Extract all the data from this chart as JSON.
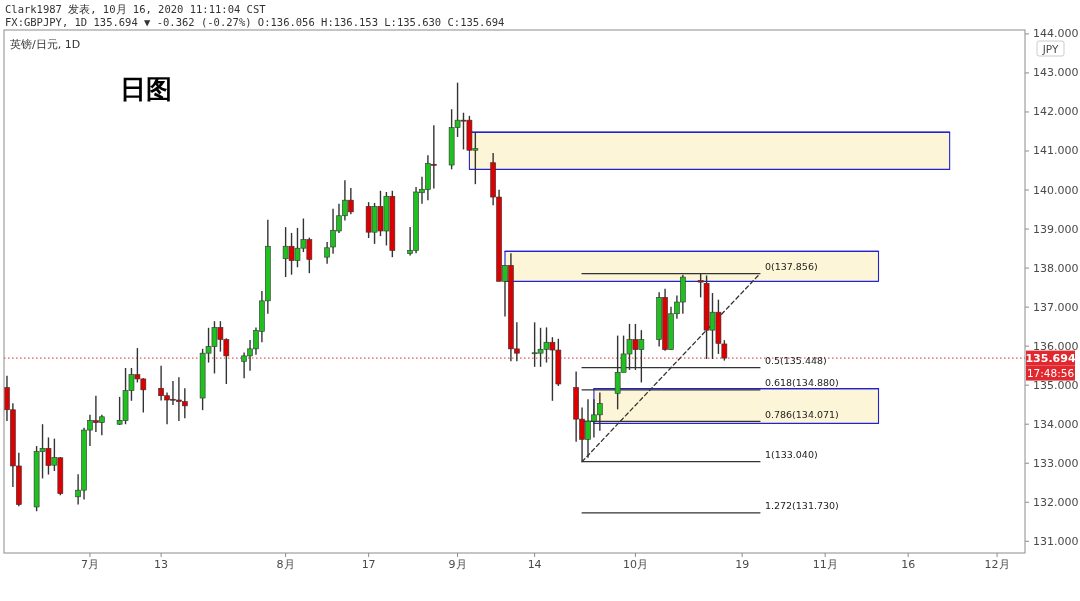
{
  "chart_data": {
    "type": "candlestick",
    "title": "日图",
    "subtitle": "英镑/日元, 1D",
    "ylabel": "JPY",
    "x": [
      "2020-06-17",
      "2020-06-18",
      "2020-06-19",
      "2020-06-22",
      "2020-06-23",
      "2020-06-24",
      "2020-06-25",
      "2020-06-26",
      "2020-06-29",
      "2020-06-30",
      "2020-07-01",
      "2020-07-02",
      "2020-07-03",
      "2020-07-06",
      "2020-07-07",
      "2020-07-08",
      "2020-07-09",
      "2020-07-10",
      "2020-07-13",
      "2020-07-14",
      "2020-07-15",
      "2020-07-16",
      "2020-07-17",
      "2020-07-20",
      "2020-07-21",
      "2020-07-22",
      "2020-07-23",
      "2020-07-24",
      "2020-07-27",
      "2020-07-28",
      "2020-07-29",
      "2020-07-30",
      "2020-07-31",
      "2020-08-03",
      "2020-08-04",
      "2020-08-05",
      "2020-08-06",
      "2020-08-07",
      "2020-08-10",
      "2020-08-11",
      "2020-08-12",
      "2020-08-13",
      "2020-08-14",
      "2020-08-17",
      "2020-08-18",
      "2020-08-19",
      "2020-08-20",
      "2020-08-21",
      "2020-08-24",
      "2020-08-25",
      "2020-08-26",
      "2020-08-27",
      "2020-08-28",
      "2020-08-31",
      "2020-09-01",
      "2020-09-02",
      "2020-09-03",
      "2020-09-04",
      "2020-09-07",
      "2020-09-08",
      "2020-09-09",
      "2020-09-10",
      "2020-09-11",
      "2020-09-14",
      "2020-09-15",
      "2020-09-16",
      "2020-09-17",
      "2020-09-18",
      "2020-09-21",
      "2020-09-22",
      "2020-09-23",
      "2020-09-24",
      "2020-09-25",
      "2020-09-28",
      "2020-09-29",
      "2020-09-30",
      "2020-10-01",
      "2020-10-02",
      "2020-10-05",
      "2020-10-06",
      "2020-10-07",
      "2020-10-08",
      "2020-10-09",
      "2020-10-12",
      "2020-10-13",
      "2020-10-14",
      "2020-10-15",
      "2020-10-16"
    ],
    "ohlc": [
      [
        134.94,
        135.24,
        134.08,
        134.37
      ],
      [
        134.37,
        134.54,
        132.39,
        132.93
      ],
      [
        132.93,
        133.27,
        131.9,
        131.94
      ],
      [
        131.88,
        133.44,
        131.77,
        133.3
      ],
      [
        133.3,
        134.0,
        132.61,
        133.38
      ],
      [
        133.38,
        133.66,
        132.71,
        132.94
      ],
      [
        132.95,
        133.63,
        132.8,
        133.15
      ],
      [
        133.14,
        133.16,
        132.18,
        132.22
      ],
      [
        132.14,
        132.72,
        131.94,
        132.31
      ],
      [
        132.31,
        133.91,
        132.07,
        133.85
      ],
      [
        133.85,
        134.24,
        133.44,
        134.1
      ],
      [
        134.09,
        134.73,
        133.8,
        134.04
      ],
      [
        134.04,
        134.24,
        133.72,
        134.19
      ],
      [
        134.0,
        134.7,
        133.98,
        134.1
      ],
      [
        134.09,
        135.44,
        134.0,
        134.86
      ],
      [
        134.86,
        135.44,
        134.6,
        135.27
      ],
      [
        135.27,
        135.95,
        135.07,
        135.16
      ],
      [
        135.16,
        135.18,
        134.3,
        134.88
      ],
      [
        134.92,
        135.5,
        134.61,
        134.73
      ],
      [
        134.73,
        134.81,
        134.0,
        134.62
      ],
      [
        134.64,
        135.11,
        134.49,
        134.62
      ],
      [
        134.62,
        135.2,
        134.08,
        134.58
      ],
      [
        134.58,
        134.92,
        134.15,
        134.47
      ],
      [
        134.67,
        135.93,
        134.36,
        135.82
      ],
      [
        135.82,
        136.47,
        135.58,
        135.99
      ],
      [
        135.99,
        136.64,
        135.3,
        136.48
      ],
      [
        136.48,
        136.64,
        135.86,
        136.17
      ],
      [
        136.17,
        136.2,
        135.03,
        135.75
      ],
      [
        135.61,
        135.84,
        135.18,
        135.75
      ],
      [
        135.75,
        136.16,
        135.37,
        135.93
      ],
      [
        135.93,
        136.48,
        135.78,
        136.4
      ],
      [
        136.38,
        137.41,
        136.1,
        137.16
      ],
      [
        137.16,
        139.24,
        136.83,
        138.56
      ],
      [
        138.24,
        139.05,
        137.77,
        138.56
      ],
      [
        138.56,
        138.9,
        137.83,
        138.19
      ],
      [
        138.19,
        139.03,
        138.02,
        138.51
      ],
      [
        138.51,
        139.27,
        138.41,
        138.73
      ],
      [
        138.73,
        138.78,
        137.87,
        138.22
      ],
      [
        138.28,
        138.67,
        138.11,
        138.52
      ],
      [
        138.54,
        139.52,
        138.37,
        138.97
      ],
      [
        138.95,
        139.65,
        138.9,
        139.34
      ],
      [
        139.34,
        140.25,
        139.22,
        139.74
      ],
      [
        139.74,
        140.05,
        139.38,
        139.44
      ],
      [
        139.58,
        139.69,
        138.77,
        138.92
      ],
      [
        138.92,
        139.67,
        138.62,
        139.58
      ],
      [
        139.58,
        139.98,
        138.82,
        138.95
      ],
      [
        138.95,
        139.95,
        138.58,
        139.84
      ],
      [
        139.84,
        139.98,
        138.28,
        138.45
      ],
      [
        138.37,
        139.05,
        138.32,
        138.45
      ],
      [
        138.45,
        140.08,
        138.38,
        139.95
      ],
      [
        139.93,
        140.34,
        139.65,
        140.02
      ],
      [
        140.01,
        140.89,
        139.74,
        140.68
      ],
      [
        140.66,
        141.66,
        140.04,
        140.63
      ],
      [
        140.64,
        142.07,
        140.53,
        141.6
      ],
      [
        141.6,
        142.75,
        141.36,
        141.79
      ],
      [
        141.79,
        141.98,
        141.04,
        141.78
      ],
      [
        141.79,
        141.9,
        141.0,
        141.02
      ],
      [
        141.02,
        141.47,
        140.15,
        141.06
      ],
      [
        140.7,
        140.95,
        139.61,
        139.82
      ],
      [
        139.82,
        140.01,
        137.66,
        137.66
      ],
      [
        137.66,
        138.07,
        136.76,
        138.07
      ],
      [
        138.07,
        138.38,
        135.61,
        135.93
      ],
      [
        135.93,
        136.61,
        135.61,
        135.82
      ],
      [
        135.82,
        136.61,
        135.47,
        135.83
      ],
      [
        135.82,
        136.47,
        135.47,
        135.92
      ],
      [
        135.92,
        136.48,
        135.58,
        136.1
      ],
      [
        136.1,
        136.23,
        134.6,
        135.9
      ],
      [
        135.9,
        136.19,
        134.98,
        135.03
      ],
      [
        134.94,
        135.35,
        133.55,
        134.13
      ],
      [
        134.13,
        134.43,
        133.04,
        133.61
      ],
      [
        133.61,
        134.64,
        133.14,
        134.08
      ],
      [
        134.08,
        134.64,
        133.66,
        134.24
      ],
      [
        134.24,
        134.81,
        133.83,
        134.53
      ],
      [
        134.79,
        136.27,
        134.38,
        135.33
      ],
      [
        135.33,
        136.27,
        135.33,
        135.8
      ],
      [
        135.8,
        136.57,
        135.39,
        136.17
      ],
      [
        136.17,
        136.57,
        135.39,
        135.91
      ],
      [
        135.91,
        136.41,
        135.07,
        136.17
      ],
      [
        136.17,
        137.38,
        135.99,
        137.25
      ],
      [
        137.25,
        137.47,
        135.88,
        135.91
      ],
      [
        135.91,
        137.01,
        135.91,
        136.83
      ],
      [
        136.83,
        137.3,
        136.7,
        137.13
      ],
      [
        137.13,
        137.83,
        136.83,
        137.77
      ],
      [
        137.68,
        137.856,
        137.25,
        137.64
      ],
      [
        137.61,
        137.81,
        135.67,
        136.41
      ],
      [
        136.41,
        137.36,
        135.67,
        136.87
      ],
      [
        136.87,
        137.19,
        135.8,
        136.07
      ],
      [
        136.056,
        136.153,
        135.63,
        135.694
      ]
    ],
    "colors": [
      "#dd0000",
      "#dd0000",
      "#dd0000",
      "#20c020",
      "#20c020",
      "#dd0000",
      "#20c020",
      "#dd0000",
      "#20c020",
      "#20c020",
      "#20c020",
      "#dd0000",
      "#20c020",
      "#20c020",
      "#20c020",
      "#20c020",
      "#dd0000",
      "#dd0000",
      "#dd0000",
      "#dd0000",
      "#dd0000",
      "#dd0000",
      "#dd0000",
      "#20c020",
      "#20c020",
      "#20c020",
      "#dd0000",
      "#dd0000",
      "#20c020",
      "#20c020",
      "#20c020",
      "#20c020",
      "#20c020",
      "#20c020",
      "#dd0000",
      "#20c020",
      "#20c020",
      "#dd0000",
      "#20c020",
      "#20c020",
      "#20c020",
      "#20c020",
      "#dd0000",
      "#dd0000",
      "#20c020",
      "#dd0000",
      "#20c020",
      "#dd0000",
      "#20c020",
      "#20c020",
      "#20c020",
      "#20c020",
      "#dd0000",
      "#20c020",
      "#20c020",
      "#dd0000",
      "#dd0000",
      "#20c020",
      "#dd0000",
      "#dd0000",
      "#20c020",
      "#dd0000",
      "#dd0000",
      "#20c020",
      "#20c020",
      "#20c020",
      "#dd0000",
      "#dd0000",
      "#dd0000",
      "#dd0000",
      "#20c020",
      "#20c020",
      "#20c020",
      "#20c020",
      "#20c020",
      "#20c020",
      "#dd0000",
      "#20c020",
      "#20c020",
      "#dd0000",
      "#20c020",
      "#20c020",
      "#20c020",
      "#dd0000",
      "#dd0000",
      "#20c020",
      "#dd0000",
      "#dd0000"
    ],
    "series": [
      {
        "type": "line",
        "x": [
          "2020-09-03",
          "2020-11-23"
        ],
        "values": [
          141.48,
          141.48
        ],
        "lower": [
          140.53,
          140.53
        ],
        "upper": [
          141.48,
          141.48
        ],
        "color": "#2323cf"
      },
      {
        "type": "line",
        "x": [
          "2020-09-09",
          "2020-11-11"
        ],
        "values": [
          138.43,
          138.43
        ],
        "lower": [
          137.66,
          137.66
        ],
        "upper": [
          138.43,
          138.43
        ],
        "color": "#2323cf"
      },
      {
        "type": "line",
        "x": [
          "2020-09-24",
          "2020-11-11"
        ],
        "values": [
          134.91,
          134.91
        ],
        "lower": [
          134.02,
          134.02
        ],
        "upper": [
          134.91,
          134.91
        ],
        "color": "#2323cf"
      },
      {
        "type": "line",
        "x": [
          "2020-09-22",
          "2020-10-22"
        ],
        "values": [
          137.856,
          137.856
        ],
        "color": "#333333"
      },
      {
        "type": "line",
        "x": [
          "2020-09-22",
          "2020-10-22"
        ],
        "values": [
          135.448,
          135.448
        ],
        "color": "#333333"
      },
      {
        "type": "line",
        "x": [
          "2020-09-22",
          "2020-10-22"
        ],
        "values": [
          134.88,
          134.88
        ],
        "color": "#333333"
      },
      {
        "type": "line",
        "x": [
          "2020-09-22",
          "2020-10-22"
        ],
        "values": [
          134.071,
          134.071
        ],
        "color": "#333333"
      },
      {
        "type": "line",
        "x": [
          "2020-09-22",
          "2020-10-22"
        ],
        "values": [
          133.04,
          133.04
        ],
        "color": "#333333"
      },
      {
        "type": "line",
        "x": [
          "2020-09-22",
          "2020-10-22"
        ],
        "values": [
          131.73,
          131.73
        ],
        "color": "#333333"
      },
      {
        "type": "line",
        "x": [
          "2020-09-22",
          "2020-10-22"
        ],
        "values": [
          133.04,
          137.856
        ],
        "color": "#333333",
        "line_style": "dashed"
      }
    ],
    "xlim": [
      "2020-06-16T12:00",
      "2020-12-05T17:00"
    ],
    "xticks": [
      {
        "value": "2020-07-01",
        "label": "7月"
      },
      {
        "value": "2020-07-13",
        "label": "13"
      },
      {
        "value": "2020-08-03",
        "label": "8月"
      },
      {
        "value": "2020-08-17",
        "label": "17"
      },
      {
        "value": "2020-09-01",
        "label": "9月"
      },
      {
        "value": "2020-09-14",
        "label": "14"
      },
      {
        "value": "2020-10-01",
        "label": "10月"
      },
      {
        "value": "2020-10-19",
        "label": "19"
      },
      {
        "value": "2020-11-02",
        "label": "11月"
      },
      {
        "value": "2020-11-16",
        "label": "16"
      },
      {
        "value": "2020-12-01",
        "label": "12月"
      }
    ],
    "ylim": [
      130.7,
      144.1
    ],
    "yticks": [
      {
        "value": 131,
        "label": "131.000"
      },
      {
        "value": 132,
        "label": "132.000"
      },
      {
        "value": 133,
        "label": "133.000"
      },
      {
        "value": 134,
        "label": "134.000"
      },
      {
        "value": 135,
        "label": "135.000"
      },
      {
        "value": 136,
        "label": "136.000"
      },
      {
        "value": 137,
        "label": "137.000"
      },
      {
        "value": 138,
        "label": "138.000"
      },
      {
        "value": 139,
        "label": "139.000"
      },
      {
        "value": 140,
        "label": "140.000"
      },
      {
        "value": 141,
        "label": "141.000"
      },
      {
        "value": 142,
        "label": "142.000"
      },
      {
        "value": 143,
        "label": "143.000"
      },
      {
        "value": 144,
        "label": "144.000"
      }
    ],
    "ref_lines": [
      {
        "axis": "y",
        "value": 135.694,
        "label": "135.694",
        "color": "#e0282e",
        "line_style": "dotted"
      }
    ],
    "annotations": [
      "Clark1987 发表, 10月 16, 2020 11:11:04 CST",
      "FX:GBPJPY, 1D 135.694 ▼ -0.362 (-0.27%) O:136.056 H:136.153 L:135.630 C:135.694",
      "17:48:56",
      {
        "text": "0(137.856)",
        "x": "2020-10-22",
        "y": 137.856
      },
      {
        "text": "0.5(135.448)",
        "x": "2020-10-22",
        "y": 135.448
      },
      {
        "text": "0.618(134.880)",
        "x": "2020-10-22",
        "y": 134.88
      },
      {
        "text": "0.786(134.071)",
        "x": "2020-10-22",
        "y": 134.071
      },
      {
        "text": "1(133.040)",
        "x": "2020-10-22",
        "y": 133.04
      },
      {
        "text": "1.272(131.730)",
        "x": "2020-10-22",
        "y": 131.73
      }
    ]
  }
}
